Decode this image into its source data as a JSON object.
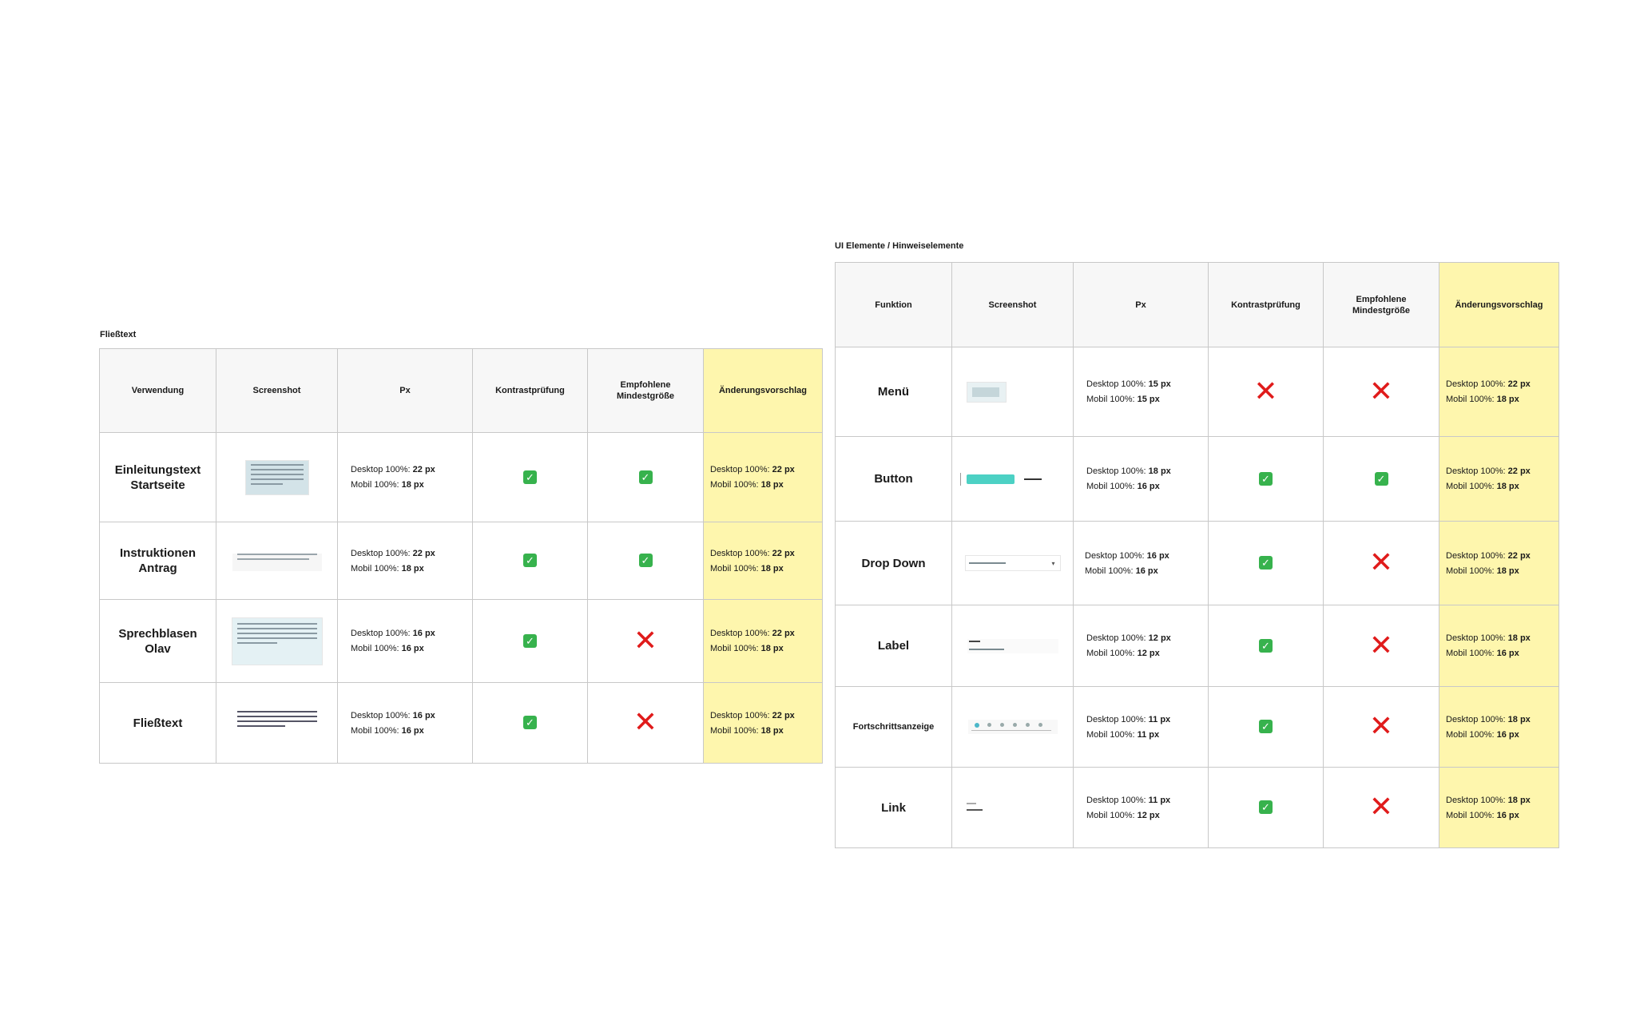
{
  "left": {
    "title": "Fließtext",
    "headers": [
      "Verwendung",
      "Screenshot",
      "Px",
      "Kontrastprüfung",
      "Empfohlene Mindestgröße",
      "Änderungsvorschlag"
    ],
    "rows": [
      {
        "label": "Einleitungstext Startseite",
        "px_desktop_label": "Desktop 100%: ",
        "px_desktop": "22 px",
        "px_mobile_label": "Mobil 100%: ",
        "px_mobile": "18 px",
        "contrast": "check",
        "minsize": "check",
        "sug_desktop_label": "Desktop 100%: ",
        "sug_desktop": "22 px",
        "sug_mobile_label": "Mobil 100%: ",
        "sug_mobile": "18 px"
      },
      {
        "label": "Instruktionen Antrag",
        "px_desktop_label": "Desktop 100%: ",
        "px_desktop": "22 px",
        "px_mobile_label": "Mobil 100%: ",
        "px_mobile": "18 px",
        "contrast": "check",
        "minsize": "check",
        "sug_desktop_label": "Desktop 100%: ",
        "sug_desktop": "22 px",
        "sug_mobile_label": "Mobil 100%: ",
        "sug_mobile": "18 px"
      },
      {
        "label": "Sprechblasen Olav",
        "px_desktop_label": "Desktop 100%: ",
        "px_desktop": "16 px",
        "px_mobile_label": "Mobil 100%: ",
        "px_mobile": "16 px",
        "contrast": "check",
        "minsize": "cross",
        "sug_desktop_label": "Desktop 100%: ",
        "sug_desktop": "22 px",
        "sug_mobile_label": "Mobil 100%: ",
        "sug_mobile": "18 px"
      },
      {
        "label": "Fließtext",
        "px_desktop_label": "Desktop 100%: ",
        "px_desktop": "16 px",
        "px_mobile_label": "Mobil 100%: ",
        "px_mobile": "16 px",
        "contrast": "check",
        "minsize": "cross",
        "sug_desktop_label": "Desktop 100%: ",
        "sug_desktop": "22 px",
        "sug_mobile_label": "Mobil 100%: ",
        "sug_mobile": "18 px"
      }
    ]
  },
  "right": {
    "title": "UI Elemente / Hinweiselemente",
    "headers": [
      "Funktion",
      "Screenshot",
      "Px",
      "Kontrastprüfung",
      "Empfohlene Mindestgröße",
      "Änderungsvorschlag"
    ],
    "rows": [
      {
        "label": "Menü",
        "px_desktop_label": "Desktop 100%: ",
        "px_desktop": "15 px",
        "px_mobile_label": "Mobil 100%: ",
        "px_mobile": "15 px",
        "contrast": "cross",
        "minsize": "cross",
        "sug_desktop_label": "Desktop 100%: ",
        "sug_desktop": "22 px",
        "sug_mobile_label": "Mobil 100%: ",
        "sug_mobile": "18 px"
      },
      {
        "label": "Button",
        "px_desktop_label": "Desktop 100%: ",
        "px_desktop": "18 px",
        "px_mobile_label": "Mobil 100%: ",
        "px_mobile": "16 px",
        "contrast": "check",
        "minsize": "check",
        "sug_desktop_label": "Desktop 100%: ",
        "sug_desktop": "22 px",
        "sug_mobile_label": "Mobil 100%: ",
        "sug_mobile": "18 px"
      },
      {
        "label": "Drop Down",
        "px_desktop_label": "Desktop 100%: ",
        "px_desktop": "16 px",
        "px_mobile_label": "Mobil 100%: ",
        "px_mobile": "16 px",
        "contrast": "check",
        "minsize": "cross",
        "sug_desktop_label": "Desktop 100%: ",
        "sug_desktop": "22 px",
        "sug_mobile_label": "Mobil 100%: ",
        "sug_mobile": "18 px"
      },
      {
        "label": "Label",
        "px_desktop_label": "Desktop 100%: ",
        "px_desktop": "12 px",
        "px_mobile_label": "Mobil 100%: ",
        "px_mobile": "12 px",
        "contrast": "check",
        "minsize": "cross",
        "sug_desktop_label": "Desktop 100%: ",
        "sug_desktop": "18 px",
        "sug_mobile_label": "Mobil 100%: ",
        "sug_mobile": "16 px"
      },
      {
        "label": "Fortschrittsanzeige",
        "px_desktop_label": "Desktop 100%: ",
        "px_desktop": "11 px",
        "px_mobile_label": "Mobil 100%: ",
        "px_mobile": "11 px",
        "contrast": "check",
        "minsize": "cross",
        "sug_desktop_label": "Desktop 100%: ",
        "sug_desktop": "18 px",
        "sug_mobile_label": "Mobil 100%: ",
        "sug_mobile": "16 px"
      },
      {
        "label": "Link",
        "px_desktop_label": "Desktop 100%: ",
        "px_desktop": "11 px",
        "px_mobile_label": "Mobil 100%: ",
        "px_mobile": "12 px",
        "contrast": "check",
        "minsize": "cross",
        "sug_desktop_label": "Desktop 100%: ",
        "sug_desktop": "18 px",
        "sug_mobile_label": "Mobil 100%: ",
        "sug_mobile": "16 px"
      }
    ]
  },
  "icons": {
    "check": "check-mark-icon",
    "cross": "cross-mark-icon"
  },
  "colors": {
    "suggestion_bg": "#fef6ad",
    "header_bg": "#f7f7f7",
    "check": "#37b24d",
    "cross": "#e01b1b",
    "border": "#c8c8c8"
  }
}
